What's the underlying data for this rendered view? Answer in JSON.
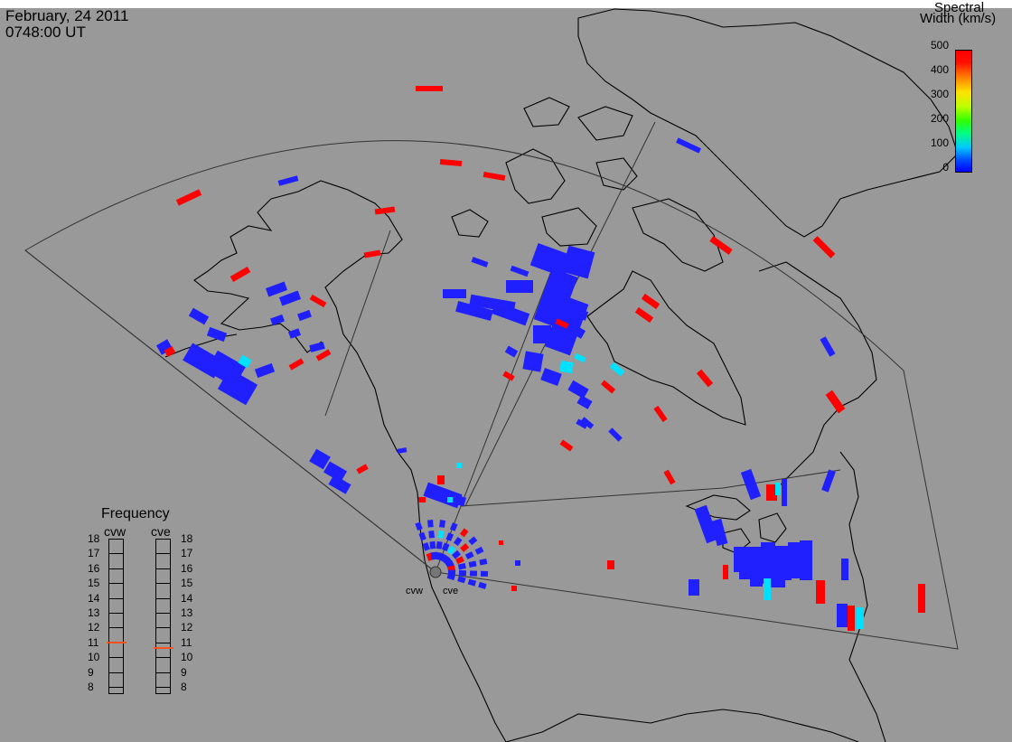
{
  "header": {
    "date": "February, 24 2011",
    "time": "0748:00 UT"
  },
  "colorbar": {
    "title_line1": "Spectral",
    "title_line2": "Width (km/s)",
    "ticks": [
      "500",
      "400",
      "300",
      "200",
      "100",
      "0"
    ]
  },
  "frequency_panel": {
    "title": "Frequency",
    "radars": [
      {
        "name": "cvw",
        "current_mhz": 11.0
      },
      {
        "name": "cve",
        "current_mhz": 10.6
      }
    ],
    "scale_labels": [
      "18",
      "17",
      "16",
      "15",
      "14",
      "13",
      "12",
      "11",
      "10",
      "9",
      "8"
    ]
  },
  "sites": {
    "west": "cvw",
    "east": "cve"
  },
  "colors": {
    "background": "#999999",
    "low_width": "#2020ff",
    "high_width": "#ff0000",
    "mid_width": "#00e0ff"
  }
}
